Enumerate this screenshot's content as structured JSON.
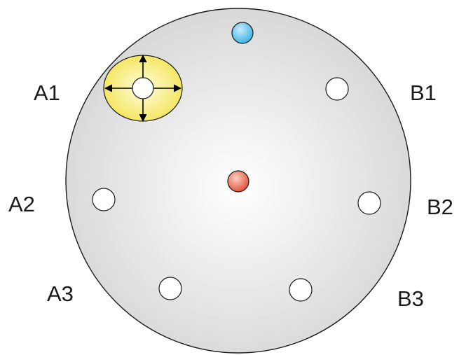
{
  "labels": {
    "a1": "A1",
    "a2": "A2",
    "a3": "A3",
    "b1": "B1",
    "b2": "B2",
    "b3": "B3"
  },
  "colors": {
    "plate_fill_center": "#ffffff",
    "plate_fill_edge": "#d6d6d6",
    "plate_stroke": "#1a1a1a",
    "hole_fill": "#ffffff",
    "top_marker": "#3fb4e6",
    "center_marker": "#e2553f",
    "highlight_fill": "#f2e24a",
    "arrow": "#000000"
  },
  "icons": {
    "top_marker": "blue-dot-icon",
    "center_marker": "red-dot-icon",
    "movement": "four-way-arrow-icon"
  }
}
